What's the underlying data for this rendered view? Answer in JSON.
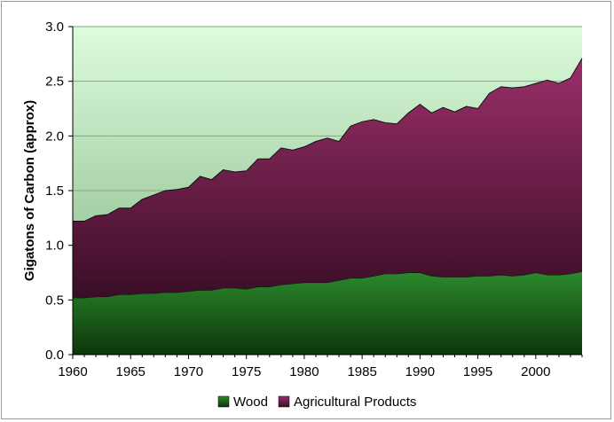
{
  "chart_data": {
    "type": "area",
    "stacked": true,
    "x": [
      1960,
      1961,
      1962,
      1963,
      1964,
      1965,
      1966,
      1967,
      1968,
      1969,
      1970,
      1971,
      1972,
      1973,
      1974,
      1975,
      1976,
      1977,
      1978,
      1979,
      1980,
      1981,
      1982,
      1983,
      1984,
      1985,
      1986,
      1987,
      1988,
      1989,
      1990,
      1991,
      1992,
      1993,
      1994,
      1995,
      1996,
      1997,
      1998,
      1999,
      2000,
      2001,
      2002,
      2003,
      2004
    ],
    "series": [
      {
        "name": "Wood",
        "color": "#1f6b1f",
        "values": [
          0.52,
          0.52,
          0.53,
          0.53,
          0.55,
          0.55,
          0.56,
          0.56,
          0.57,
          0.57,
          0.58,
          0.59,
          0.59,
          0.61,
          0.61,
          0.6,
          0.62,
          0.62,
          0.64,
          0.65,
          0.66,
          0.66,
          0.66,
          0.68,
          0.7,
          0.7,
          0.72,
          0.74,
          0.74,
          0.75,
          0.75,
          0.72,
          0.71,
          0.71,
          0.71,
          0.72,
          0.72,
          0.73,
          0.72,
          0.73,
          0.75,
          0.73,
          0.73,
          0.74,
          0.76
        ]
      },
      {
        "name": "Agricultural Products",
        "color": "#8b2a5c",
        "values": [
          0.7,
          0.7,
          0.74,
          0.75,
          0.79,
          0.79,
          0.86,
          0.9,
          0.93,
          0.94,
          0.95,
          1.04,
          1.01,
          1.08,
          1.06,
          1.08,
          1.17,
          1.17,
          1.25,
          1.22,
          1.24,
          1.29,
          1.32,
          1.27,
          1.39,
          1.43,
          1.43,
          1.38,
          1.37,
          1.46,
          1.54,
          1.49,
          1.55,
          1.51,
          1.56,
          1.53,
          1.67,
          1.72,
          1.72,
          1.72,
          1.73,
          1.78,
          1.75,
          1.79,
          1.95
        ]
      }
    ],
    "xticks": [
      "1960",
      "1965",
      "1970",
      "1975",
      "1980",
      "1985",
      "1990",
      "1995",
      "2000"
    ],
    "yticks": [
      "0.0",
      "0.5",
      "1.0",
      "1.5",
      "2.0",
      "2.5",
      "3.0"
    ],
    "xlim": [
      1960,
      2004
    ],
    "ylim": [
      0,
      3.0
    ],
    "xlabel": "",
    "ylabel": "Gigatons of Carbon (approx)",
    "legend_position": "bottom",
    "plot_background": "#d6f7d6",
    "gridlines": "horizontal"
  }
}
